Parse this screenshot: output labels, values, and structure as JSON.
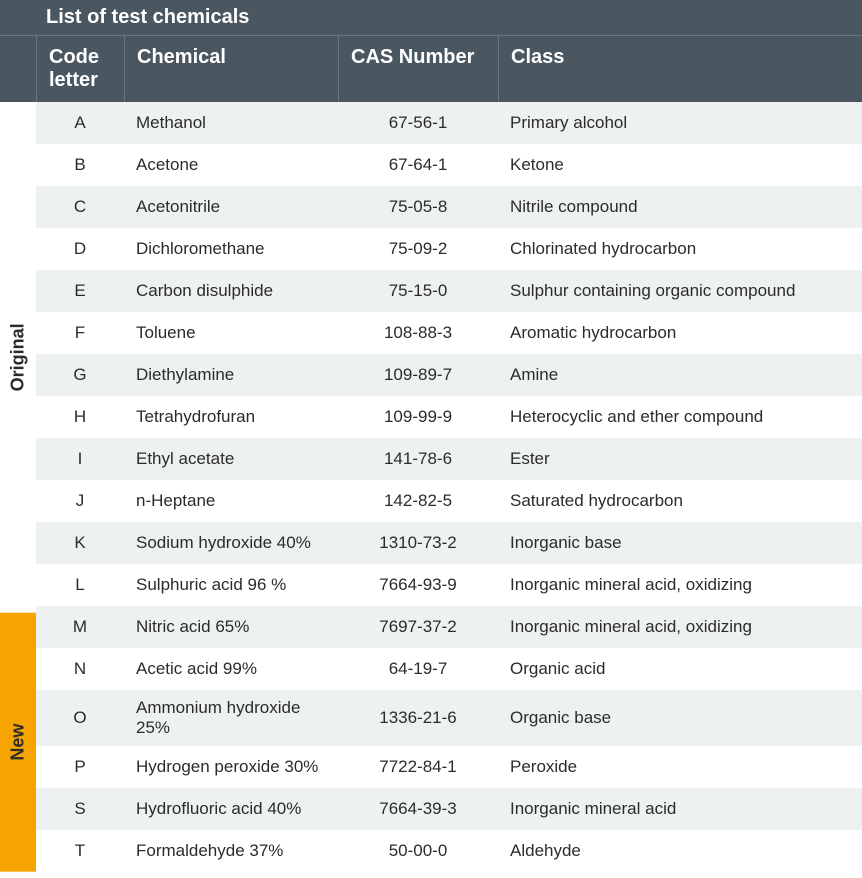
{
  "title": "List of test chemicals",
  "headers": {
    "code": "Code letter",
    "chemical": "Chemical",
    "cas": "CAS Number",
    "class": "Class"
  },
  "colors": {
    "header_bg": "#4a5761",
    "header_text": "#ffffff",
    "row_even": "#eef1f2",
    "row_odd": "#ffffff",
    "side_original_bg": "#ffffff",
    "side_original_text": "#2b2b2b",
    "side_new_bg": "#f5a400",
    "side_new_text": "#2b2b2b"
  },
  "groups": [
    {
      "label": "Original",
      "side_bg_key": "side_original_bg",
      "side_text_key": "side_original_text",
      "rows": [
        {
          "code": "A",
          "chemical": "Methanol",
          "cas": "67-56-1",
          "class": "Primary alcohol"
        },
        {
          "code": "B",
          "chemical": "Acetone",
          "cas": "67-64-1",
          "class": "Ketone"
        },
        {
          "code": "C",
          "chemical": "Acetonitrile",
          "cas": "75-05-8",
          "class": "Nitrile compound"
        },
        {
          "code": "D",
          "chemical": "Dichloromethane",
          "cas": "75-09-2",
          "class": "Chlorinated hydrocarbon"
        },
        {
          "code": "E",
          "chemical": "Carbon disulphide",
          "cas": "75-15-0",
          "class": "Sulphur containing organic compound"
        },
        {
          "code": "F",
          "chemical": "Toluene",
          "cas": "108-88-3",
          "class": "Aromatic hydrocarbon"
        },
        {
          "code": "G",
          "chemical": "Diethylamine",
          "cas": "109-89-7",
          "class": "Amine"
        },
        {
          "code": "H",
          "chemical": "Tetrahydrofuran",
          "cas": "109-99-9",
          "class": "Heterocyclic and ether compound"
        },
        {
          "code": "I",
          "chemical": "Ethyl acetate",
          "cas": "141-78-6",
          "class": "Ester"
        },
        {
          "code": "J",
          "chemical": "n-Heptane",
          "cas": "142-82-5",
          "class": "Saturated hydrocarbon"
        },
        {
          "code": "K",
          "chemical": "Sodium hydroxide 40%",
          "cas": "1310-73-2",
          "class": "Inorganic base"
        },
        {
          "code": "L",
          "chemical": "Sulphuric acid 96 %",
          "cas": "7664-93-9",
          "class": "Inorganic mineral acid, oxidizing"
        }
      ]
    },
    {
      "label": "New",
      "side_bg_key": "side_new_bg",
      "side_text_key": "side_new_text",
      "rows": [
        {
          "code": "M",
          "chemical": "Nitric acid 65%",
          "cas": "7697-37-2",
          "class": "Inorganic mineral acid, oxidizing"
        },
        {
          "code": "N",
          "chemical": "Acetic acid 99%",
          "cas": "64-19-7",
          "class": "Organic acid"
        },
        {
          "code": "O",
          "chemical": "Ammonium hydroxide 25%",
          "cas": "1336-21-6",
          "class": "Organic base"
        },
        {
          "code": "P",
          "chemical": "Hydrogen peroxide 30%",
          "cas": "7722-84-1",
          "class": "Peroxide"
        },
        {
          "code": "S",
          "chemical": "Hydrofluoric acid 40%",
          "cas": "7664-39-3",
          "class": "Inorganic mineral acid"
        },
        {
          "code": "T",
          "chemical": "Formaldehyde 37%",
          "cas": "50-00-0",
          "class": "Aldehyde"
        }
      ]
    }
  ]
}
